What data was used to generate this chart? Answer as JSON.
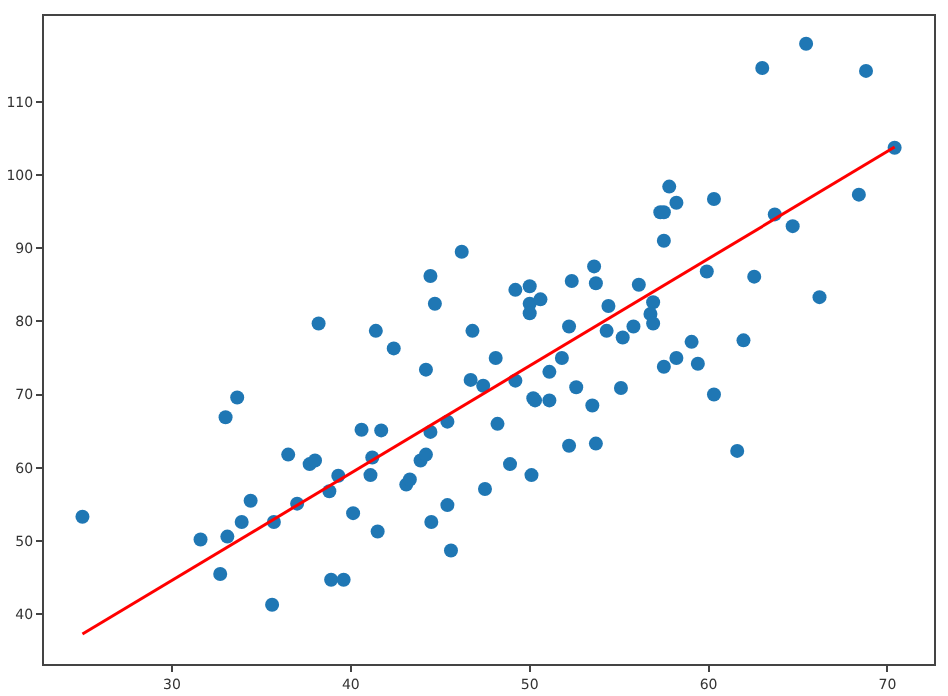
{
  "chart_data": {
    "type": "scatter",
    "xlim": [
      22.85,
      72.6
    ],
    "ylim": [
      33.2,
      121.7
    ],
    "xticks": [
      30,
      40,
      50,
      60,
      70
    ],
    "yticks": [
      40,
      50,
      60,
      70,
      80,
      90,
      100,
      110
    ],
    "grid": false,
    "marker": "circle",
    "series": [
      {
        "type": "scatter",
        "color": "#1f77b4",
        "x": [
          25.0,
          31.6,
          32.7,
          33.0,
          33.65,
          33.1,
          33.9,
          34.4,
          35.6,
          35.7,
          36.5,
          37.0,
          37.7,
          38.0,
          38.2,
          38.8,
          38.9,
          39.3,
          39.6,
          40.13,
          40.6,
          41.2,
          41.1,
          41.7,
          41.4,
          41.5,
          42.4,
          43.1,
          43.3,
          43.9,
          44.2,
          44.2,
          44.45,
          44.7,
          44.45,
          44.5,
          45.4,
          45.4,
          45.6,
          46.2,
          46.8,
          46.7,
          47.4,
          47.5,
          48.1,
          48.2,
          48.9,
          49.2,
          49.2,
          50.0,
          50.0,
          50.0,
          50.6,
          50.2,
          50.3,
          50.1,
          51.1,
          51.1,
          51.8,
          52.2,
          52.35,
          52.2,
          52.6,
          53.5,
          53.6,
          53.7,
          53.7,
          54.4,
          54.3,
          55.1,
          55.2,
          55.8,
          56.1,
          56.9,
          56.75,
          56.9,
          57.3,
          57.5,
          57.8,
          58.2,
          57.5,
          57.5,
          58.2,
          59.05,
          59.4,
          59.9,
          60.3,
          60.3,
          61.6,
          61.95,
          62.55,
          63.0,
          63.7,
          64.7,
          65.45,
          66.2,
          68.4,
          68.8,
          70.4
        ],
        "values": [
          53.3,
          50.2,
          45.5,
          66.9,
          69.6,
          50.6,
          52.6,
          55.5,
          41.3,
          52.6,
          61.8,
          55.1,
          60.5,
          61.0,
          79.7,
          56.8,
          44.7,
          58.9,
          44.7,
          53.8,
          65.2,
          61.4,
          59.0,
          65.1,
          78.7,
          51.3,
          76.3,
          57.7,
          58.4,
          61.0,
          61.8,
          73.4,
          86.2,
          82.4,
          64.9,
          52.6,
          66.3,
          54.9,
          48.7,
          89.5,
          78.7,
          72.0,
          71.2,
          57.1,
          75.0,
          66.0,
          60.5,
          84.3,
          71.9,
          84.8,
          82.4,
          81.1,
          83.0,
          69.5,
          69.2,
          59.0,
          73.1,
          69.2,
          75.0,
          79.3,
          85.5,
          63.0,
          71.0,
          68.5,
          87.5,
          85.2,
          63.3,
          82.1,
          78.7,
          70.9,
          77.8,
          79.3,
          85.0,
          82.6,
          81.0,
          79.7,
          94.9,
          94.9,
          98.4,
          96.2,
          91.0,
          73.8,
          75.0,
          77.2,
          74.2,
          86.8,
          96.7,
          70.0,
          62.3,
          77.4,
          86.1,
          114.6,
          94.6,
          93.0,
          117.9,
          83.3,
          97.3,
          114.2,
          103.7
        ]
      },
      {
        "type": "line",
        "color": "#ff0000",
        "line_style": "solid",
        "marker": "none",
        "x": [
          25.0,
          70.4
        ],
        "values": [
          37.3,
          103.8
        ]
      }
    ]
  }
}
